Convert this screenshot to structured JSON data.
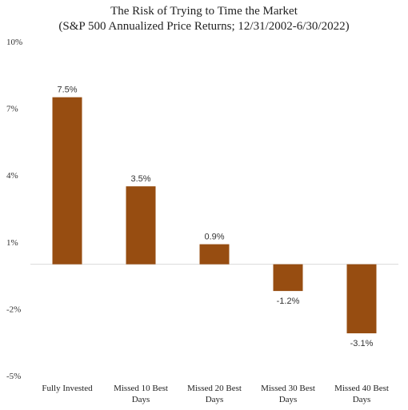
{
  "chart_data": {
    "type": "bar",
    "title": "The Risk of Trying to Time the Market",
    "subtitle": "(S&P 500 Annualized Price Returns; 12/31/2002-6/30/2022)",
    "categories": [
      [
        "Fully Invested"
      ],
      [
        "Missed 10 Best",
        "Days"
      ],
      [
        "Missed 20 Best",
        "Days"
      ],
      [
        "Missed 30 Best",
        "Days"
      ],
      [
        "Missed 40 Best",
        "Days"
      ]
    ],
    "values": [
      7.5,
      3.5,
      0.9,
      -1.2,
      -3.1
    ],
    "data_labels": [
      "7.5%",
      "3.5%",
      "0.9%",
      "-1.2%",
      "-3.1%"
    ],
    "yticks": [
      10,
      7,
      4,
      1,
      -2,
      -5
    ],
    "ytick_labels": [
      "10%",
      "7%",
      "4%",
      "1%",
      "-2%",
      "-5%"
    ],
    "ylim": [
      -5,
      10
    ],
    "xlabel": "",
    "ylabel": "",
    "grid": false,
    "legend": "none",
    "colors": {
      "bar": "#974D11",
      "axis": "#D9D9D9",
      "text": "#333333"
    }
  }
}
